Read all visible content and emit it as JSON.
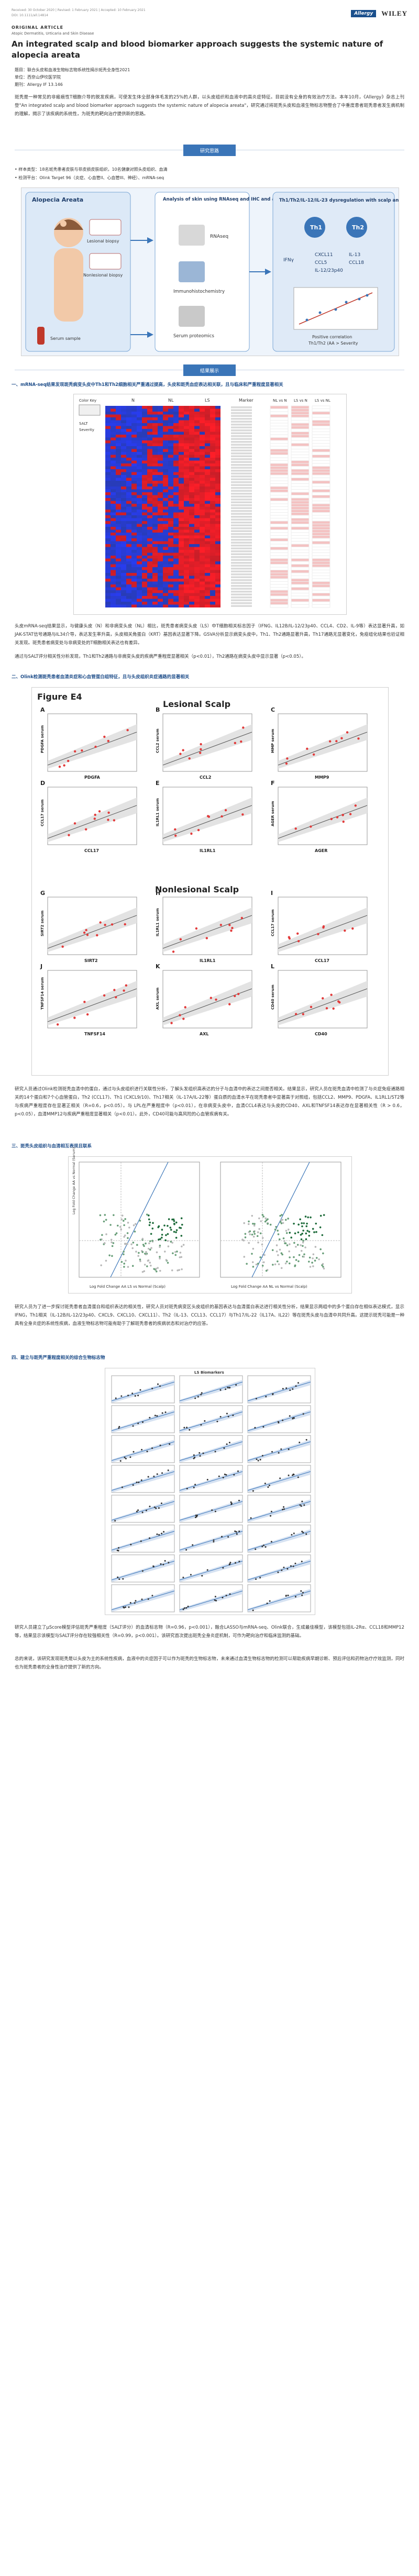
{
  "header": {
    "received_line": "Received: 30 October 2020   |   Revised: 1 February 2021   |   Accepted: 10 February 2021",
    "doi": "DOI: 10.1111/all.14814",
    "journal_logo": "Allergy",
    "publisher_logo": "WILEY",
    "article_type": "ORIGINAL ARTICLE",
    "journal_section": "Atopic Dermatitis, Urticaria and Skin Disease",
    "title": "An integrated scalp and blood biomarker approach suggests the systemic nature of alopecia areata"
  },
  "info": {
    "topic": "题目：联合头皮和血液生物标志物系统性揭示斑秃全身性2021",
    "unit": "单位：西奈山伊坎医学院",
    "journal": "期刊：Allergy   IF 13.146"
  },
  "intro": {
    "text": "斑秃是一种常见的非瘢痕性T细胞介导的脱发疾病，可使发生体全部身体毛发的25%的人群，以头皮组织和血液中的高炎症特征。目前没有全身的有效治疗方法。本年10月，《Allergy》杂志上刊登\"An integrated scalp and blood biomarker approach suggests the systemic nature of alopecia areata\"，研究通过将斑秃头皮和血液生物标志物整合了中重度患者斑秃患者发生病机制的理解，揭示了该疾病的系统性，为斑秃的靶向治疗提供新的思路。"
  },
  "section1": {
    "label": "研究思路",
    "bullets": [
      "• 样本类型：18名斑秃患者皮肤与非皮损皮肤组织，10名健康对照头皮组织、血清",
      "• 检测平台：Olink Target 96（炎症、心血管II、心血管III、神经）、mRNA-seq"
    ],
    "diagram": {
      "left_title": "Alopecia Areata",
      "lesional": "Lesional biopsy",
      "nonlesional": "Nonlesional biopsy",
      "serum": "Serum sample",
      "center_title": "Analysis of skin using RNAseq and IHC and analysis of serum using proteomics",
      "rnaseq": "RNAseq",
      "ihc": "Immunohistochemistry",
      "proteomics": "Serum proteomics",
      "right_title": "Th1/Th2/IL-12/IL-23 dysregulation with scalp and serum inflammation",
      "th1": "Th1",
      "th2": "Th2",
      "ifng": "IFNγ",
      "markers": [
        "CXCL11",
        "IL-13",
        "CCL5",
        "CCL18",
        "IL-12/23p40"
      ],
      "positive": "Positive correlation",
      "positive2": "Th1/Th2 (AA > Severity"
    }
  },
  "section2": {
    "label": "结果展示",
    "item1": "一、mRNA-seq结果发现斑秃病变头皮中Th1和Th2细胞相关严重通过提高，头皮和斑秃血症表达相关联，且与临床和严重程度显著相关",
    "heatmap": {
      "col_labels": [
        "N",
        "NL",
        "LS",
        "Marker",
        "NL vs N",
        "LS vs N",
        "LS vs NL"
      ],
      "legend_title": "Color Key",
      "side_labels": [
        "SALT",
        "Severity"
      ]
    },
    "para1": "头皮mRNA-seq结果显示，与健康头皮（N）和非病变头皮（NL）相比，斑秃患者病变头皮（LS）中T细胞相关标志因子（IFNG、IL12B/IL-12/23p40、CCL4、CD2、IL-9等）表达显著升高，如JAK-STAT信号通路与IL34介导，表达发生率升高，头皮相关角蛋白（KRT）基因表达显著下降。GSVA分析显示病变头皮中，Th1、Th2通路显著升高，Th17通路无显著变化，免疫组化结果也验证相关发现。斑秃患者病变处与非病变处的T细胞相关表达也有差异。",
    "para2": "通过与SALT评分相关性分析发现，Th1和Th2通路与非病变头皮的疾病严重程度显著相关（p<0.01），Th2通路在病变头皮中显示显著（p<0.05）。",
    "item2": "二、Olink检测斑秃患者血清炎症和心血管蛋白组特征，且与头皮组织炎症通路的显著相关",
    "fig_e4": {
      "label": "Figure E4",
      "lesional": "Lesional Scalp",
      "nonlesional": "Nonlesional Scalp",
      "panels": [
        {
          "letter": "A",
          "y": "PDGFA serum",
          "x": "PDGFA"
        },
        {
          "letter": "B",
          "y": "CCL2 serum",
          "x": "CCL2"
        },
        {
          "letter": "C",
          "y": "MMP serum",
          "x": "MMP9"
        },
        {
          "letter": "D",
          "y": "CCL17 serum",
          "x": "CCL17"
        },
        {
          "letter": "E",
          "y": "IL1RL1 serum",
          "x": "IL1RL1"
        },
        {
          "letter": "F",
          "y": "AGER serum",
          "x": "AGER"
        },
        {
          "letter": "G",
          "y": "SIRT2 serum",
          "x": "SIRT2"
        },
        {
          "letter": "H",
          "y": "IL1RL1 serum",
          "x": "IL1RL1"
        },
        {
          "letter": "I",
          "y": "CCL17 serum",
          "x": "CCL17"
        },
        {
          "letter": "J",
          "y": "TNFSF14 serum",
          "x": "TNFSF14"
        },
        {
          "letter": "K",
          "y": "AXL serum",
          "x": "AXL"
        },
        {
          "letter": "L",
          "y": "CD40 serum",
          "x": "CD40"
        }
      ]
    },
    "para3": "研究人员通过Olink检测斑秃血清中的蛋白，通过与头皮组织进行关联性分析，了解头发组织高表达的分子与血清中的表达之间是否相关。结果显示，研究人员在斑秃血清中检测了与炎症免疫通路相关的14个蛋白和7个心血管蛋白，Th2 (CCL17)、Th1 (CXCL9/10)、Th17相关（IL-17A/IL-22等）蛋白质的血清水平在斑秃患者中显著高于对照组，包括CCL2、MMP9、PDGFA、IL1RL1/ST2等与疾病严重程度存在显著正相关（R=0.6，p<0.05）。与 LPL在严重程度中（p<0.01），在非病变头皮中，血清CCL4表达与头皮的CD40、AXL和TNFSF14表达存在显著相关性（R > 0.6，p<0.05），血清MMP12与疾病严重程度显著相关（p<0.01）。此外，CD40可能与高风险的心血管疾病有关。",
    "item3": "三、斑秃头皮组织与血清相互表现且联系",
    "volcano": {
      "x_label": "Log Fold Change AA LS vs Normal (Scalp)",
      "x_label2": "Log Fold Change AA NL vs Normal (Scalp)",
      "y_label": "Log Fold Change AA vs Normal (Serum)"
    },
    "para4": "研究人员为了进一步探讨斑秃患者血清蛋白和组织表达的相关性，研究人员对斑秃病变区头皮组织的基因表达与血清蛋白表达进行相关性分析，结果显示两组中的多个蛋白存在相似表达模式，显示IFNG，Th1相关（IL-12B/IL-12/23p40、CXCL9、CXCL10、CXCL11）、Th2（IL-13、CCL13、CCL17）与Th17/IL-22（IL17A、IL22）等在斑秃头皮与血清中共同升高。这提示斑秃可能是一种具有全身炎症的系统性疾病，血液生物标志物可能有助于了解斑秃患者的疾病状态和对治疗的应答。",
    "item4": "四、建立与斑秃严重程度相关的综合生物标志物",
    "scatter_grid_title": "LS Biomarkers",
    "para5": "研究人员建立了μScore模型评估斑秃严重程度（SALT评分）的血清标志物（R=0.96，p<0.001），融合LASSO与mRNA-seq、Olink联合，生成最佳模型，该模型包括IL-2Rα、CCL18和MMP12等，结果显示该模型与SALT评分存在较强相关性（R=0.99，p<0.001）。该研究首次提出斑秃全身炎症机制，可作为靶向治疗和临床监测的基础。",
    "para6": "总的来说，该研究发现斑秃是以头皮为主的系统性疾病，血液中的炎症因子可以作为斑秃的生物标志物，未来通过血清生物标志物的检测可以帮助疾病早期诊断、预后评估和药物治疗疗效监测，同时也为斑秃患者的全身性治疗提供了新的方向。"
  }
}
